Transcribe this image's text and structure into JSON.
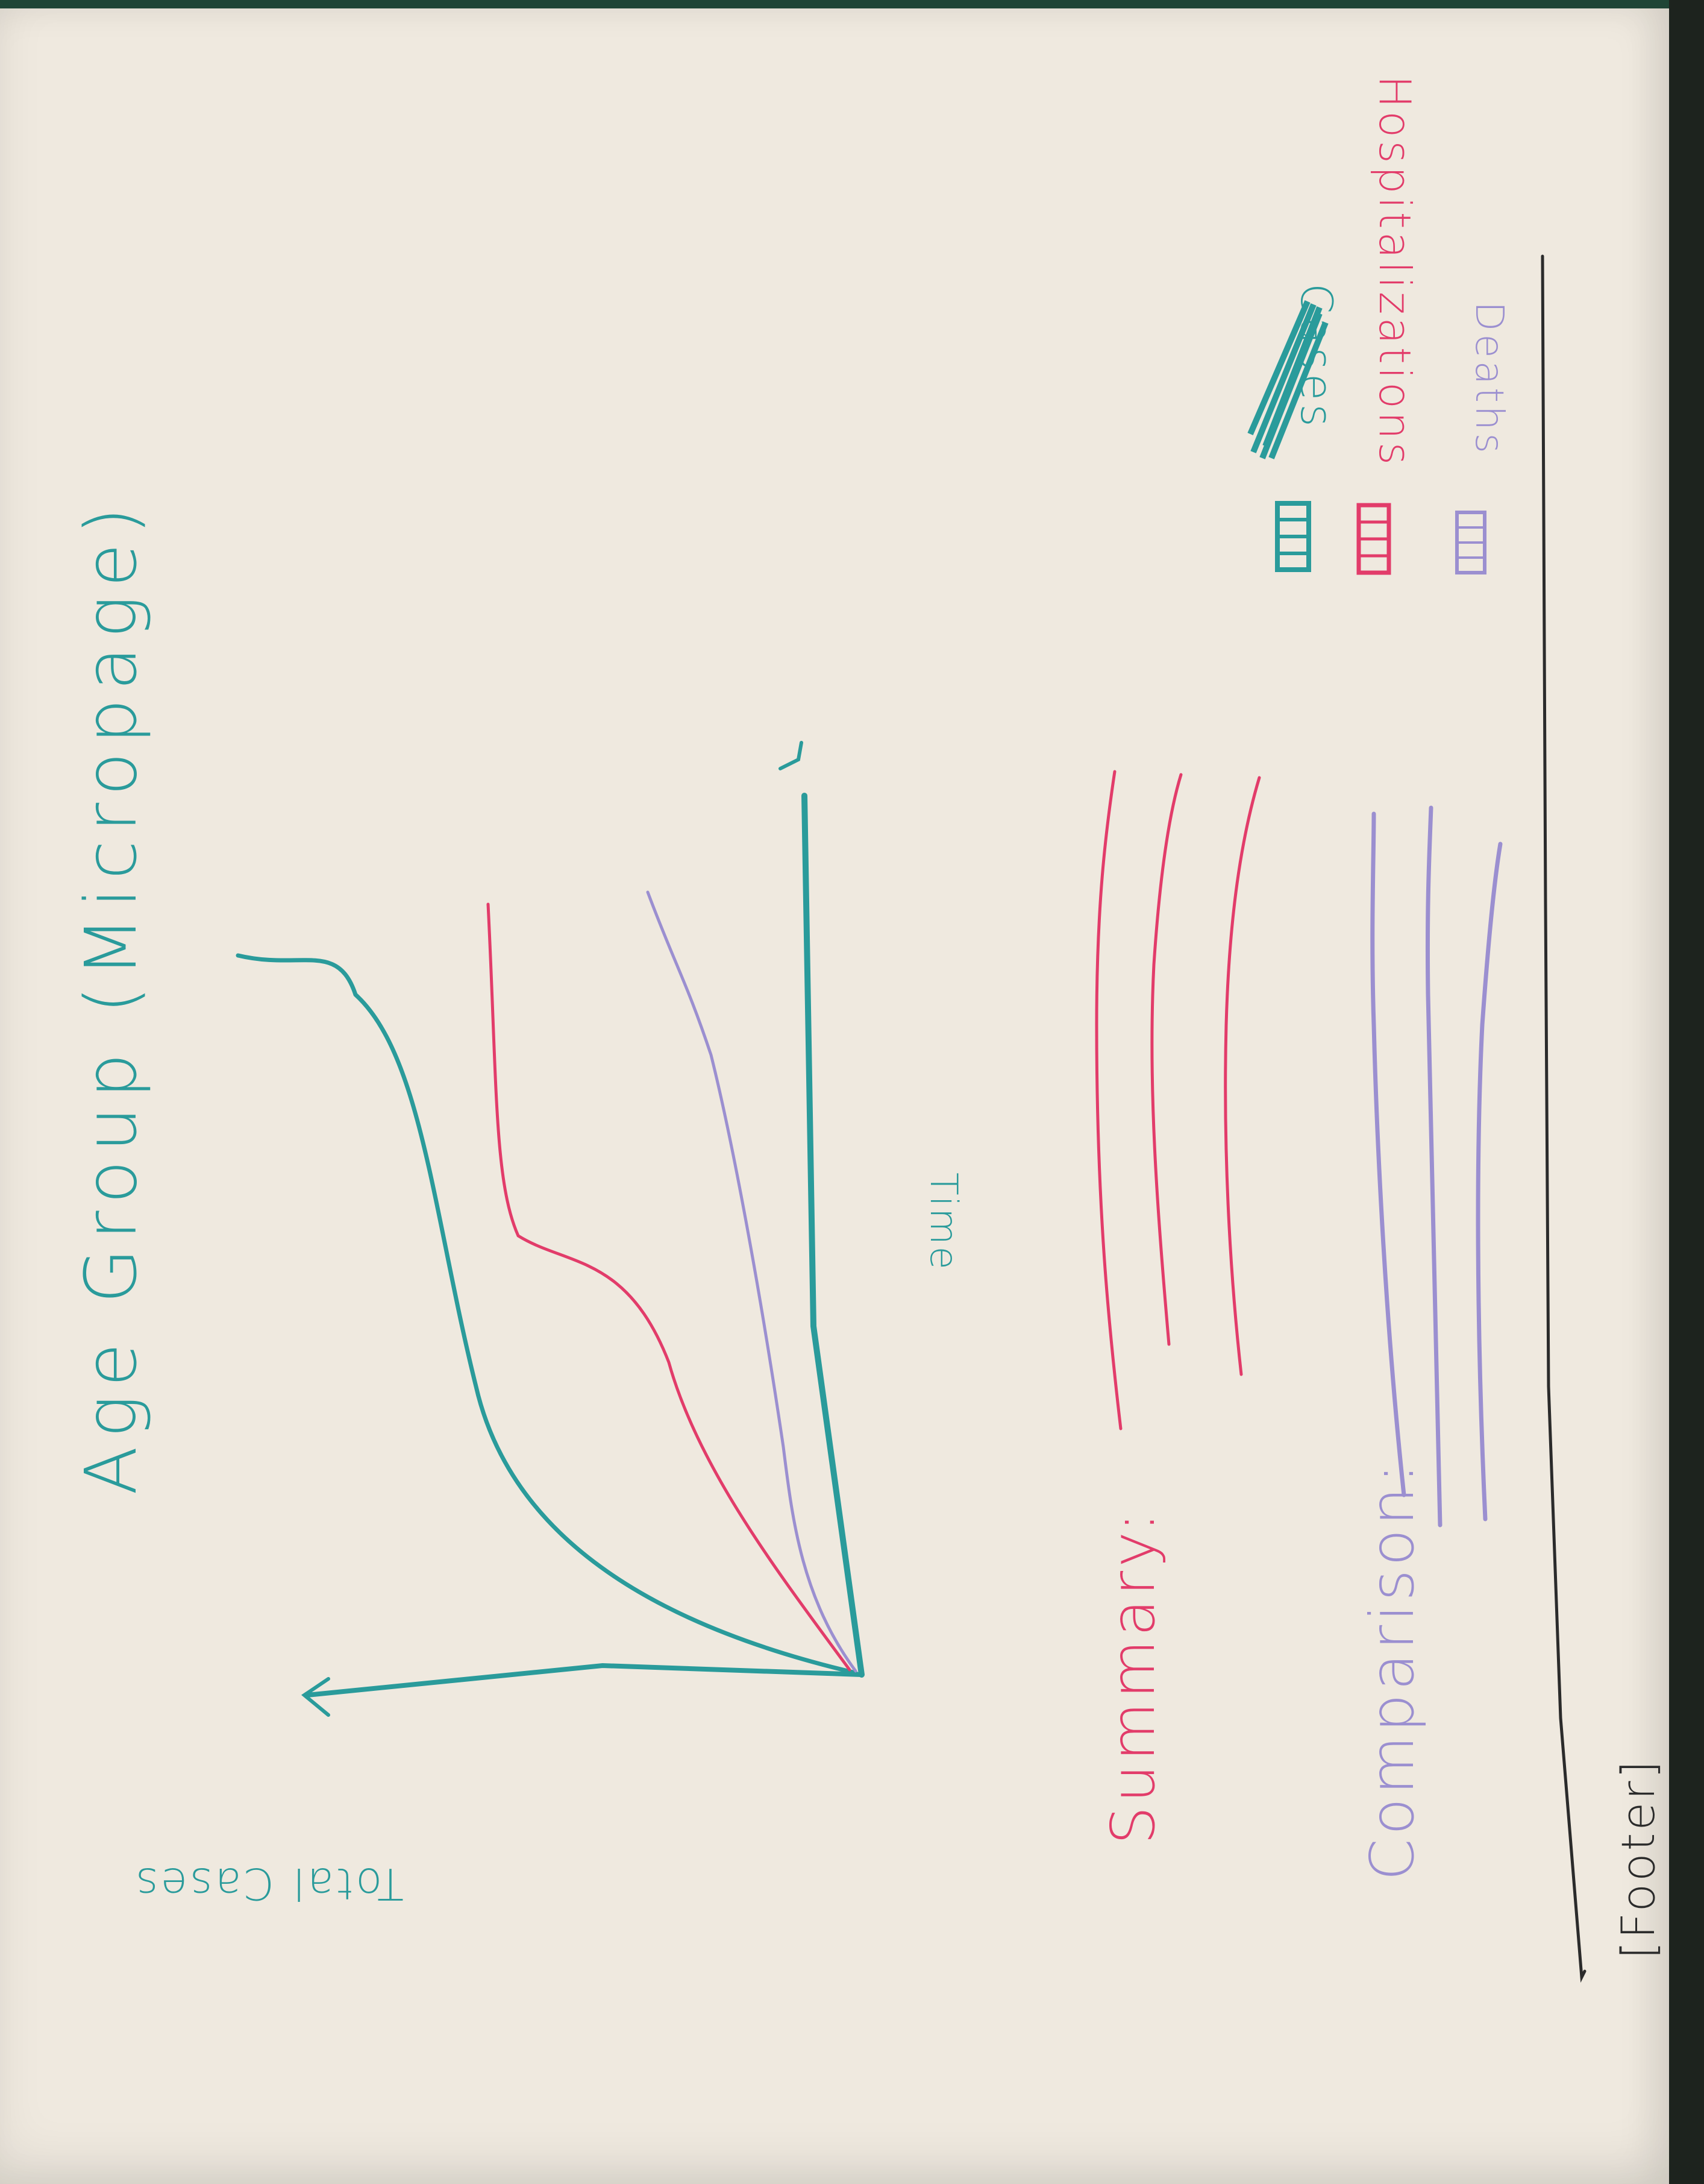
{
  "page": {
    "title": "Age Group (Micropage)",
    "summary_label": "Summary:",
    "comparison_label": "Comparison:",
    "footer_label": "[Footer]"
  },
  "legend": {
    "items": [
      {
        "label": "Cases",
        "color": "#2a9b9b",
        "icon": "cases-swatch-icon"
      },
      {
        "label": "Hospitalizations",
        "color": "#e23c6a",
        "icon": "hospitalizations-swatch-icon"
      },
      {
        "label": "Deaths",
        "color": "#9b8fd0",
        "icon": "deaths-swatch-icon"
      }
    ]
  },
  "chart": {
    "ylabel": "Total Cases",
    "xlabel": "Time"
  },
  "colors": {
    "cases": "#2a9b9b",
    "hospitalizations": "#e23c6a",
    "deaths": "#9b8fd0",
    "axis": "#2a9b9b",
    "footer_rule": "#2b2b2b"
  }
}
